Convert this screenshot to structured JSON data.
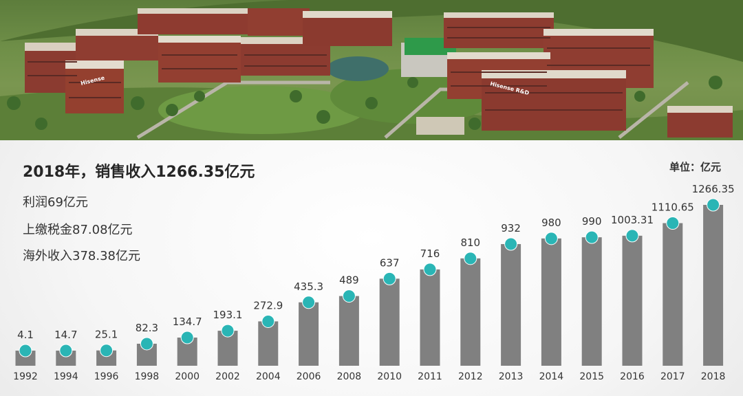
{
  "header": {
    "headline": "2018年，销售收入1266.35亿元",
    "stats": [
      "利润69亿元",
      "上缴税金87.08亿元",
      "海外收入378.38亿元"
    ],
    "unit": "单位：亿元"
  },
  "photo": {
    "signs": [
      "Hisense",
      "Hisense R&D"
    ]
  },
  "colors": {
    "bar": "#808080",
    "marker": "#2ab5b5",
    "text": "#333333"
  },
  "chart_data": {
    "type": "bar",
    "categories": [
      "1992",
      "1994",
      "1996",
      "1998",
      "2000",
      "2002",
      "2004",
      "2006",
      "2008",
      "2010",
      "2011",
      "2012",
      "2013",
      "2014",
      "2015",
      "2016",
      "2017",
      "2018"
    ],
    "values": [
      4.1,
      14.7,
      25.1,
      82.3,
      134.7,
      193.1,
      272.9,
      435.3,
      489,
      637,
      716,
      810,
      932,
      980,
      990,
      1003.31,
      1110.65,
      1266.35
    ],
    "value_labels": [
      "4.1",
      "14.7",
      "25.1",
      "82.3",
      "134.7",
      "193.1",
      "272.9",
      "435.3",
      "489",
      "637",
      "716",
      "810",
      "932",
      "980",
      "990",
      "1003.31",
      "1110.65",
      "1266.35"
    ],
    "title": "",
    "xlabel": "",
    "ylabel": "",
    "grid": false,
    "legend": "none"
  }
}
